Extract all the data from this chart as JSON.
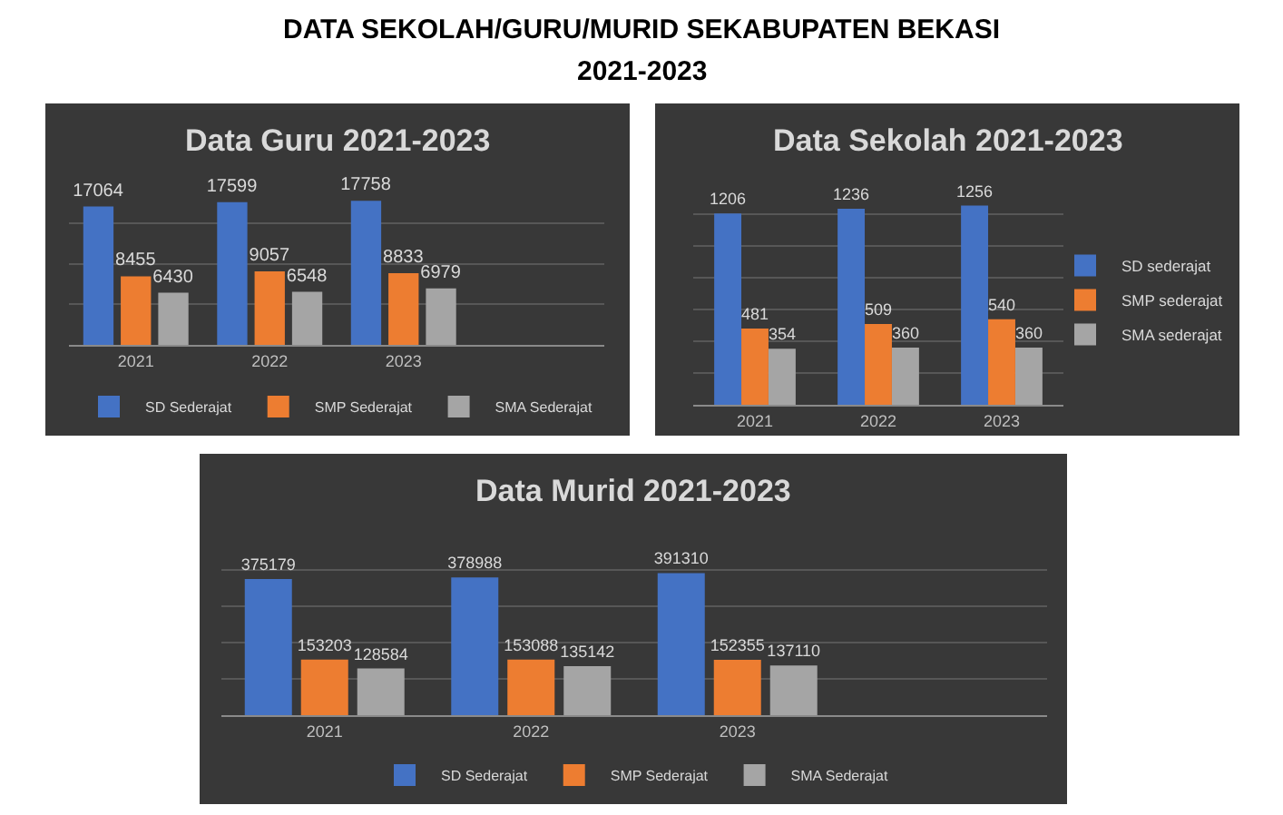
{
  "chart_data": [
    {
      "type": "other",
      "title": "DATA SEKOLAH/GURU/MURID SEKABUPATEN BEKASI",
      "subtitle": "2021-2023"
    },
    {
      "type": "bar",
      "title": "Data Guru 2021-2023",
      "categories": [
        "2021",
        "2022",
        "2023",
        null
      ],
      "series": [
        {
          "name": "SD Sederajat",
          "color": "#4472c4",
          "values": [
            17064,
            17599,
            17758,
            null
          ]
        },
        {
          "name": "SMP Sederajat",
          "color": "#ed7d31",
          "values": [
            8455,
            9057,
            8833,
            null
          ]
        },
        {
          "name": "SMA Sederajat",
          "color": "#a5a5a5",
          "values": [
            6430,
            6548,
            6979,
            null
          ]
        }
      ],
      "grid": "y",
      "tick_labels": "x",
      "legend": "bottom",
      "data_labels": true
    },
    {
      "type": "bar",
      "title": "Data Sekolah 2021-2023",
      "categories": [
        "2021",
        "2022",
        "2023"
      ],
      "series": [
        {
          "name": "SD sederajat",
          "color": "#4472c4",
          "values": [
            1206,
            1236,
            1256
          ]
        },
        {
          "name": "SMP sederajat",
          "color": "#ed7d31",
          "values": [
            481,
            509,
            540
          ]
        },
        {
          "name": "SMA sederajat",
          "color": "#a5a5a5",
          "values": [
            354,
            360,
            360
          ]
        }
      ],
      "grid": "y",
      "tick_labels": "x",
      "legend": "right",
      "data_labels": true
    },
    {
      "type": "bar",
      "title": "Data Murid 2021-2023",
      "categories": [
        "2021",
        "2022",
        "2023",
        null
      ],
      "series": [
        {
          "name": "SD Sederajat",
          "color": "#4472c4",
          "values": [
            375179,
            378988,
            391310,
            null
          ]
        },
        {
          "name": "SMP Sederajat",
          "color": "#ed7d31",
          "values": [
            153203,
            153088,
            152355,
            null
          ]
        },
        {
          "name": "SMA Sederajat",
          "color": "#a5a5a5",
          "values": [
            128584,
            135142,
            137110,
            null
          ]
        }
      ],
      "grid": "y",
      "tick_labels": "x",
      "legend": "bottom",
      "data_labels": true
    }
  ]
}
